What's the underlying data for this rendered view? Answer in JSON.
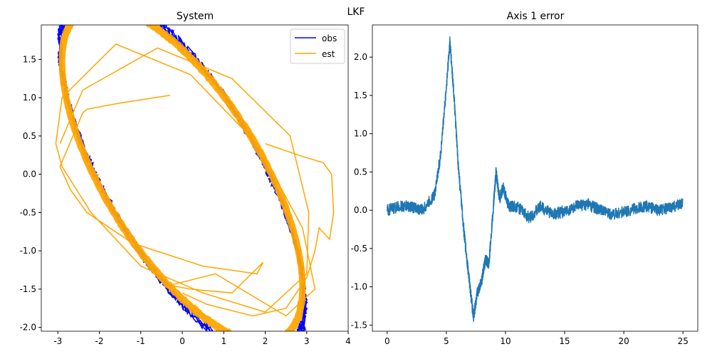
{
  "figure_title": "LKF",
  "chart_data": [
    {
      "type": "line",
      "title": "System",
      "xlabel": "",
      "ylabel": "",
      "xlim": [
        -3.4,
        4.0
      ],
      "ylim": [
        -2.05,
        1.95
      ],
      "xticks": [
        -3,
        -2,
        -1,
        0,
        1,
        2,
        3,
        4
      ],
      "yticks": [
        -2.0,
        -1.5,
        -1.0,
        -0.5,
        0.0,
        0.5,
        1.0,
        1.5
      ],
      "legend_position": "top-right",
      "series": [
        {
          "name": "obs",
          "color": "#0000ff",
          "description_points": "noisy ellipse x=a*cos(t)+b*sin(t)",
          "ellipse": {
            "a": 2.5,
            "b": -1.7,
            "c": -1.0,
            "d": 1.7
          },
          "x": [
            1.5,
            2.8,
            2.95,
            2.2,
            0.8,
            -0.8,
            -2.2,
            -2.95,
            -2.8,
            -1.5
          ],
          "y": [
            -1.7,
            -0.8,
            0.4,
            1.2,
            1.6,
            1.55,
            0.7,
            -0.3,
            -1.0,
            -1.55
          ]
        },
        {
          "name": "est",
          "color": "#ffa500",
          "x": [
            -0.3,
            -1.5,
            -2.3,
            -2.4,
            -2.95,
            -2.7,
            -2.3,
            -1.2,
            0.5,
            1.8,
            1.95,
            1.2,
            0.2,
            -0.3,
            0.8,
            2.5,
            3.2,
            2.9,
            1.8,
            0.2,
            -1.6,
            -2.9,
            -3.05,
            -2.9,
            -2.2,
            -1.0,
            0.5,
            2.0,
            3.0,
            3.05,
            2.6,
            1.2,
            -0.6,
            -2.4,
            -2.95
          ],
          "y": [
            1.03,
            0.93,
            0.85,
            0.8,
            0.1,
            -0.2,
            -0.5,
            -0.9,
            -1.2,
            -1.3,
            -1.15,
            -1.55,
            -1.5,
            -1.45,
            -1.3,
            -1.85,
            -1.5,
            -0.7,
            0.4,
            1.3,
            1.7,
            1.0,
            0.4,
            0.1,
            -0.5,
            -1.2,
            -1.55,
            -1.8,
            -1.3,
            -0.5,
            0.5,
            1.25,
            1.65,
            1.1,
            0.4
          ]
        }
      ]
    },
    {
      "type": "line",
      "title": "Axis 1 error",
      "xlabel": "",
      "ylabel": "",
      "xlim": [
        -1.25,
        26.25
      ],
      "ylim": [
        -1.58,
        2.42
      ],
      "xticks": [
        0,
        5,
        10,
        15,
        20,
        25
      ],
      "yticks": [
        -1.5,
        -1.0,
        -0.5,
        0.0,
        0.5,
        1.0,
        1.5,
        2.0
      ],
      "series": [
        {
          "name": "",
          "color": "#1f77b4",
          "x": [
            0,
            1,
            2,
            3,
            4,
            4.5,
            5,
            5.3,
            5.6,
            6,
            6.5,
            7,
            7.3,
            7.6,
            8,
            8.3,
            8.6,
            9.0,
            9.2,
            9.5,
            9.8,
            10.3,
            11,
            12,
            13,
            14,
            15,
            16,
            17,
            18,
            19,
            20,
            21,
            22,
            23,
            24,
            25
          ],
          "y": [
            0.0,
            0.05,
            0.05,
            0.0,
            0.2,
            0.7,
            1.6,
            2.2,
            1.6,
            0.6,
            -0.3,
            -1.0,
            -1.4,
            -1.1,
            -0.9,
            -0.65,
            -0.7,
            0.1,
            0.5,
            0.15,
            0.3,
            0.05,
            0.05,
            -0.1,
            0.05,
            -0.05,
            -0.02,
            0.05,
            0.08,
            0.0,
            -0.05,
            -0.02,
            0.02,
            0.05,
            0.0,
            0.03,
            0.1
          ]
        }
      ]
    }
  ]
}
